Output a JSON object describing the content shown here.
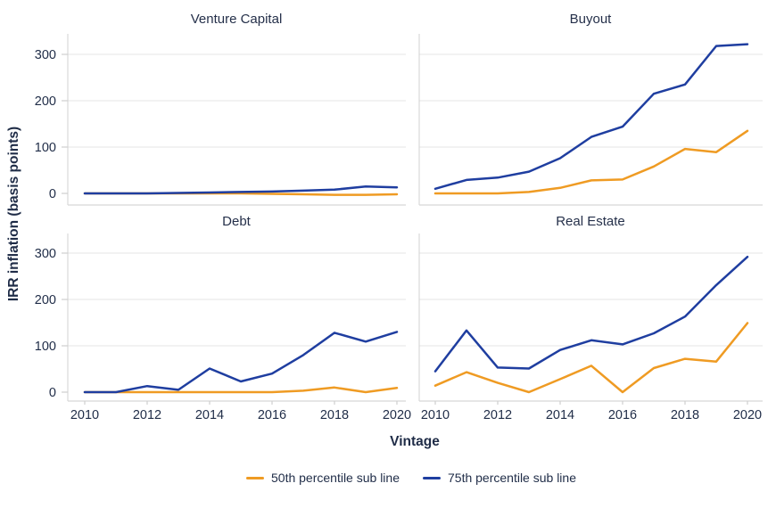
{
  "chart_data": {
    "type": "line",
    "title": "",
    "xlabel": "Vintage",
    "ylabel": "IRR inflation (basis points)",
    "x": [
      2010,
      2011,
      2012,
      2013,
      2014,
      2015,
      2016,
      2017,
      2018,
      2019,
      2020
    ],
    "xticks": [
      2010,
      2012,
      2014,
      2016,
      2018,
      2020
    ],
    "yticks": [
      0,
      100,
      200,
      300
    ],
    "ylim": [
      -20,
      340
    ],
    "grid": "horizontal-only",
    "legend_position": "bottom-center",
    "facets": [
      {
        "title": "Venture Capital",
        "row": 0,
        "col": 0,
        "series": [
          {
            "name": "50th percentile sub line",
            "color": "#ef9b23",
            "values": [
              0,
              0,
              0,
              0,
              0,
              0,
              -1,
              -2,
              -3,
              -3,
              -2
            ]
          },
          {
            "name": "75th percentile sub line",
            "color": "#1f3ea0",
            "values": [
              0,
              0,
              0,
              1,
              2,
              3,
              4,
              6,
              8,
              15,
              13
            ]
          }
        ]
      },
      {
        "title": "Buyout",
        "row": 0,
        "col": 1,
        "series": [
          {
            "name": "50th percentile sub line",
            "color": "#ef9b23",
            "values": [
              0,
              0,
              0,
              3,
              12,
              28,
              30,
              58,
              96,
              89,
              135
            ]
          },
          {
            "name": "75th percentile sub line",
            "color": "#1f3ea0",
            "values": [
              10,
              29,
              34,
              47,
              76,
              122,
              144,
              215,
              235,
              318,
              322
            ]
          }
        ]
      },
      {
        "title": "Debt",
        "row": 1,
        "col": 0,
        "series": [
          {
            "name": "50th percentile sub line",
            "color": "#ef9b23",
            "values": [
              0,
              0,
              0,
              0,
              0,
              0,
              0,
              3,
              10,
              0,
              9
            ]
          },
          {
            "name": "75th percentile sub line",
            "color": "#1f3ea0",
            "values": [
              0,
              0,
              13,
              5,
              51,
              23,
              40,
              80,
              128,
              109,
              130
            ]
          }
        ]
      },
      {
        "title": "Real Estate",
        "row": 1,
        "col": 1,
        "series": [
          {
            "name": "50th percentile sub line",
            "color": "#ef9b23",
            "values": [
              14,
              43,
              20,
              0,
              28,
              57,
              0,
              52,
              72,
              66,
              149
            ]
          },
          {
            "name": "75th percentile sub line",
            "color": "#1f3ea0",
            "values": [
              45,
              133,
              53,
              51,
              91,
              112,
              103,
              127,
              163,
              231,
              292
            ]
          }
        ]
      }
    ],
    "legend": [
      {
        "label": "50th percentile sub line",
        "color": "#ef9b23"
      },
      {
        "label": "75th percentile sub line",
        "color": "#1f3ea0"
      }
    ]
  },
  "styles": {
    "text_color": "#1f2c47",
    "title_color": "#25304a",
    "grid_color": "#e4e4e4",
    "spine_color": "#d8d8d8",
    "tick_color": "#cfcfcf",
    "background": "#ffffff"
  }
}
